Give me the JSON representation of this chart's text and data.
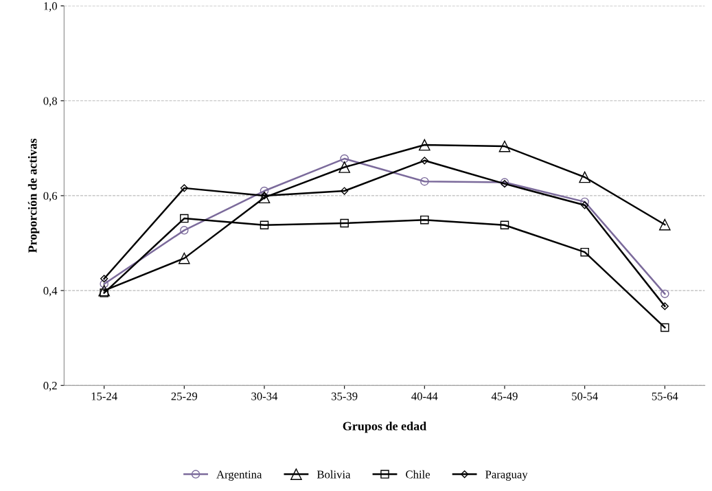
{
  "chart_data": {
    "type": "line",
    "xlabel": "Grupos de edad",
    "ylabel": "Proporción de activas",
    "categories": [
      "15-24",
      "25-29",
      "30-34",
      "35-39",
      "40-44",
      "45-49",
      "50-54",
      "55-64"
    ],
    "series": [
      {
        "name": "Argentina",
        "color": "#7b6a9b",
        "marker": "circle",
        "values": [
          0.414,
          0.527,
          0.61,
          0.678,
          0.63,
          0.628,
          0.587,
          0.393
        ]
      },
      {
        "name": "Bolivia",
        "color": "#000000",
        "marker": "triangle",
        "values": [
          0.4,
          0.468,
          0.596,
          0.66,
          0.707,
          0.704,
          0.639,
          0.539
        ]
      },
      {
        "name": "Chile",
        "color": "#000000",
        "marker": "square",
        "values": [
          0.395,
          0.552,
          0.538,
          0.542,
          0.549,
          0.538,
          0.481,
          0.322
        ]
      },
      {
        "name": "Paraguay",
        "color": "#000000",
        "marker": "diamond",
        "values": [
          0.425,
          0.616,
          0.6,
          0.61,
          0.674,
          0.625,
          0.58,
          0.367
        ]
      }
    ],
    "ylim": [
      0.2,
      1.0
    ],
    "yticks": [
      {
        "value": 0.2,
        "label": "0,2"
      },
      {
        "value": 0.4,
        "label": "0,4"
      },
      {
        "value": 0.6,
        "label": "0,6"
      },
      {
        "value": 0.8,
        "label": "0,8"
      },
      {
        "value": 1.0,
        "label": "1,0"
      }
    ],
    "grid": "y",
    "legend": "bottom",
    "line_style": "solid"
  }
}
